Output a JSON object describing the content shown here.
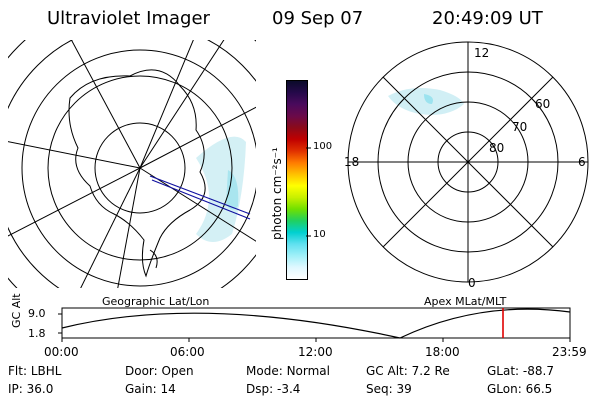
{
  "header": {
    "instrument": "Ultraviolet Imager",
    "date": "09 Sep 07",
    "time": "20:49:09 UT"
  },
  "colorbar": {
    "label": "photon cm⁻²s⁻¹",
    "ticks": [
      "100",
      "10"
    ],
    "colors": [
      "#0b0b2a",
      "#25094a",
      "#4a0a5c",
      "#6a0a4a",
      "#8b0a1a",
      "#c00000",
      "#e03000",
      "#ff7a00",
      "#ffc000",
      "#ffff00",
      "#c8f000",
      "#70e000",
      "#20d060",
      "#00d0d0",
      "#60e0f0",
      "#a0f0f8",
      "#e0f8ff",
      "#ffffff"
    ]
  },
  "geo_panel": {
    "label": "Geographic Lat/Lon"
  },
  "polar_panel": {
    "label": "Apex MLat/MLT",
    "hour_labels": {
      "top": "12",
      "bottom": "0",
      "left": "18",
      "right": "6"
    },
    "lat_labels": [
      "60",
      "70",
      "80"
    ]
  },
  "altitude_plot": {
    "ylabel": "GC Alt",
    "yticks": [
      "9.0",
      "1.8"
    ],
    "xticks": [
      "00:00",
      "06:00",
      "12:00",
      "18:00",
      "23:59"
    ],
    "marker_time": "20:49"
  },
  "footer": {
    "row1": [
      {
        "key": "Flt:",
        "val": "LBHL"
      },
      {
        "key": "Door:",
        "val": "Open"
      },
      {
        "key": "Mode:",
        "val": "Normal"
      },
      {
        "key": "GC Alt:",
        "val": "7.2 Re"
      },
      {
        "key": "GLat:",
        "val": "-88.7"
      }
    ],
    "row2": [
      {
        "key": "IP:",
        "val": "36.0"
      },
      {
        "key": "Gain:",
        "val": "14"
      },
      {
        "key": "Dsp:",
        "val": "-3.4"
      },
      {
        "key": "Seq:",
        "val": "39"
      },
      {
        "key": "GLon:",
        "val": "66.5"
      }
    ]
  }
}
